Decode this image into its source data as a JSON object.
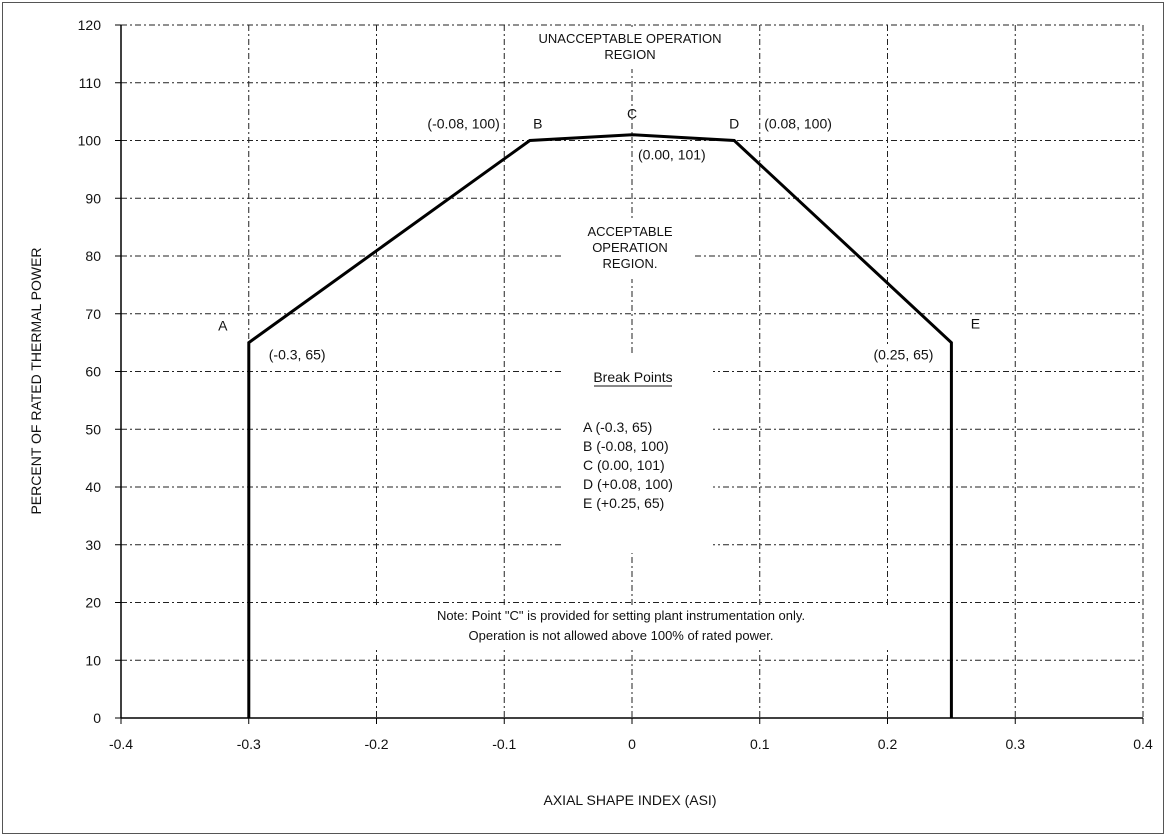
{
  "chart_data": {
    "type": "line",
    "title": "",
    "xlabel": "AXIAL SHAPE INDEX (ASI)",
    "ylabel": "PERCENT OF RATED THERMAL POWER",
    "xlim": [
      -0.4,
      0.4
    ],
    "ylim": [
      0,
      120
    ],
    "x_ticks": [
      -0.4,
      -0.3,
      -0.2,
      -0.1,
      0,
      0.1,
      0.2,
      0.3,
      0.4
    ],
    "x_tick_labels": [
      "-0.4",
      "-0.3",
      "-0.2",
      "-0.1",
      "0",
      "0.1",
      "0.2",
      "0.3",
      "0.4"
    ],
    "y_ticks": [
      0,
      10,
      20,
      30,
      40,
      50,
      60,
      70,
      80,
      90,
      100,
      110,
      120
    ],
    "y_tick_labels": [
      "0",
      "10",
      "20",
      "30",
      "40",
      "50",
      "60",
      "70",
      "80",
      "90",
      "100",
      "110",
      "120"
    ],
    "grid": true,
    "series": [
      {
        "x": [
          -0.3,
          -0.3,
          -0.08,
          0.0,
          0.08,
          0.25,
          0.25
        ],
        "y": [
          0,
          65,
          100,
          101,
          100,
          65,
          0
        ]
      }
    ],
    "points": [
      {
        "letter": "A",
        "coord": "(-0.3, 65)",
        "x": -0.3,
        "y": 65
      },
      {
        "letter": "B",
        "coord": "(-0.08, 100)",
        "x": -0.08,
        "y": 100
      },
      {
        "letter": "C",
        "coord": "(0.00, 101)",
        "x": 0.0,
        "y": 101
      },
      {
        "letter": "D",
        "coord": "(0.08, 100)",
        "x": 0.08,
        "y": 100
      },
      {
        "letter": "E",
        "coord": "(0.25, 65)",
        "x": 0.25,
        "y": 65
      }
    ],
    "regions": {
      "unacceptable": [
        "UNACCEPTABLE OPERATION",
        "REGION"
      ],
      "acceptable": [
        "ACCEPTABLE",
        "OPERATION",
        "REGION."
      ]
    },
    "break_points": {
      "title": "Break Points",
      "items": [
        "A  (-0.3, 65)",
        "B  (-0.08, 100)",
        "C  (0.00, 101)",
        "D  (+0.08, 100)",
        "E  (+0.25, 65)"
      ]
    },
    "note": [
      "Note:  Point \"C\" is provided for setting plant instrumentation only.",
      "Operation is not allowed above 100% of rated power."
    ]
  }
}
